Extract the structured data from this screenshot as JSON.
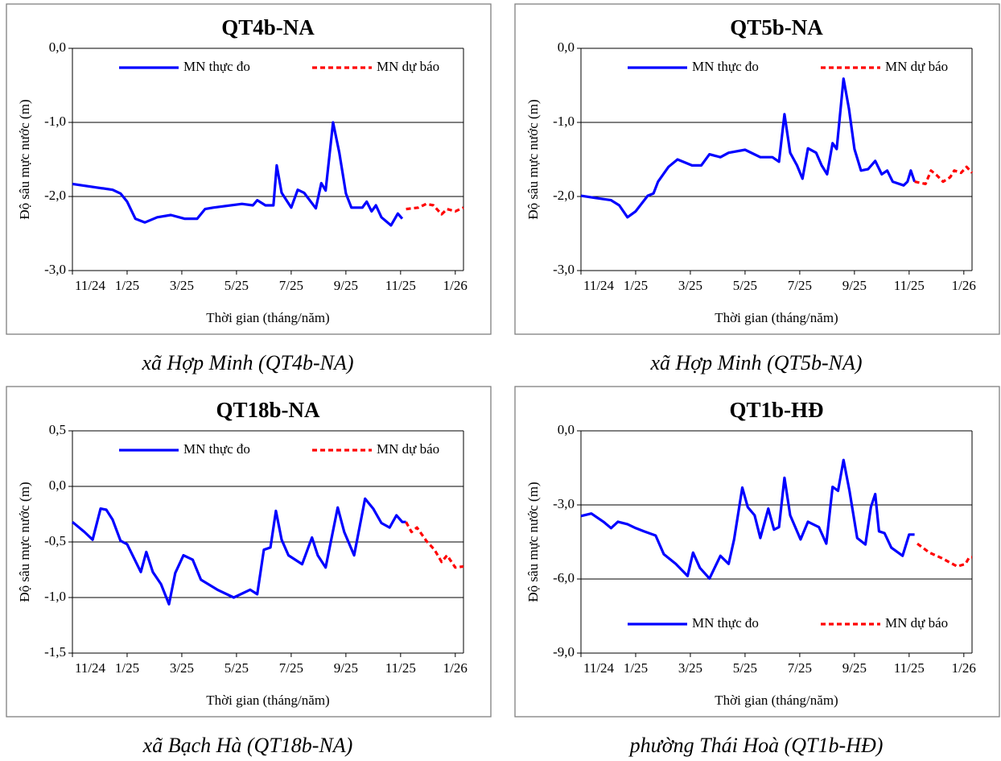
{
  "chart_data": [
    {
      "type": "line",
      "title": "QT4b-NA",
      "caption": "xã Hợp Minh (QT4b-NA)",
      "x_label": "Thời gian (tháng/năm)",
      "y_label": "Độ sâu mực nước (m)",
      "xlim": [
        0,
        14.3
      ],
      "xticks": [
        {
          "value": 0,
          "label": "11/24"
        },
        {
          "value": 2,
          "label": "1/25"
        },
        {
          "value": 4,
          "label": "3/25"
        },
        {
          "value": 6,
          "label": "5/25"
        },
        {
          "value": 8,
          "label": "7/25"
        },
        {
          "value": 10,
          "label": "9/25"
        },
        {
          "value": 12,
          "label": "11/25"
        },
        {
          "value": 14,
          "label": "1/26"
        }
      ],
      "ylim": [
        -3,
        0
      ],
      "yticks": [
        {
          "value": -3,
          "label": "-3,0"
        },
        {
          "value": -2,
          "label": "-2,0"
        },
        {
          "value": -1,
          "label": "-1,0"
        },
        {
          "value": 0,
          "label": "0,0"
        }
      ],
      "grid": true,
      "legend": "top",
      "series": [
        {
          "name": "MN thực đo",
          "color": "#0000ff",
          "dashed": false,
          "x": [
            0,
            1.47,
            1.76,
            2,
            2.3,
            2.65,
            3.1,
            3.6,
            4.1,
            4.56,
            4.85,
            5.15,
            6.2,
            6.6,
            6.76,
            7.06,
            7.35,
            7.47,
            7.65,
            8,
            8.24,
            8.47,
            8.9,
            9.1,
            9.26,
            9.53,
            9.76,
            10,
            10.2,
            10.6,
            10.76,
            10.94,
            11.1,
            11.3,
            11.65,
            11.9,
            12.06
          ],
          "values": [
            -1.83,
            -1.91,
            -1.96,
            -2.07,
            -2.3,
            -2.35,
            -2.28,
            -2.25,
            -2.3,
            -2.3,
            -2.17,
            -2.15,
            -2.1,
            -2.12,
            -2.05,
            -2.12,
            -2.12,
            -1.58,
            -1.95,
            -2.15,
            -1.91,
            -1.95,
            -2.16,
            -1.82,
            -1.92,
            -1.0,
            -1.41,
            -1.96,
            -2.15,
            -2.15,
            -2.07,
            -2.2,
            -2.12,
            -2.28,
            -2.39,
            -2.23,
            -2.3
          ]
        },
        {
          "name": "MN dự báo",
          "color": "#ff0000",
          "dashed": true,
          "x": [
            12.2,
            12.65,
            12.94,
            13.2,
            13.5,
            13.7,
            14,
            14.3
          ],
          "values": [
            -2.17,
            -2.15,
            -2.1,
            -2.12,
            -2.24,
            -2.17,
            -2.2,
            -2.15
          ]
        }
      ]
    },
    {
      "type": "line",
      "title": "QT5b-NA",
      "caption": "xã Hợp Minh (QT5b-NA)",
      "x_label": "Thời gian (tháng/năm)",
      "y_label": "Độ sâu mực nước (m)",
      "xlim": [
        0,
        14.3
      ],
      "xticks": [
        {
          "value": 0,
          "label": "11/24"
        },
        {
          "value": 2,
          "label": "1/25"
        },
        {
          "value": 4,
          "label": "3/25"
        },
        {
          "value": 6,
          "label": "5/25"
        },
        {
          "value": 8,
          "label": "7/25"
        },
        {
          "value": 10,
          "label": "9/25"
        },
        {
          "value": 12,
          "label": "11/25"
        },
        {
          "value": 14,
          "label": "1/26"
        }
      ],
      "ylim": [
        -3,
        0
      ],
      "yticks": [
        {
          "value": -3,
          "label": "-3,0"
        },
        {
          "value": -2,
          "label": "-2,0"
        },
        {
          "value": -1,
          "label": "-1,0"
        },
        {
          "value": 0,
          "label": "0,0"
        }
      ],
      "grid": true,
      "legend": "top",
      "series": [
        {
          "name": "MN thực đo",
          "color": "#0000ff",
          "dashed": false,
          "x": [
            0,
            0.53,
            1.1,
            1.4,
            1.7,
            2,
            2.44,
            2.65,
            2.82,
            3.2,
            3.53,
            4.06,
            4.4,
            4.7,
            5.1,
            5.4,
            6,
            6.56,
            7,
            7.24,
            7.44,
            7.65,
            7.9,
            8.1,
            8.3,
            8.6,
            8.8,
            9,
            9.2,
            9.35,
            9.6,
            9.8,
            10,
            10.24,
            10.5,
            10.76,
            11,
            11.2,
            11.4,
            11.8,
            11.94,
            12.06,
            12.2
          ],
          "values": [
            -1.99,
            -2.02,
            -2.05,
            -2.12,
            -2.28,
            -2.2,
            -1.99,
            -1.96,
            -1.8,
            -1.6,
            -1.5,
            -1.58,
            -1.58,
            -1.43,
            -1.47,
            -1.41,
            -1.37,
            -1.47,
            -1.47,
            -1.53,
            -0.89,
            -1.41,
            -1.58,
            -1.76,
            -1.35,
            -1.41,
            -1.58,
            -1.7,
            -1.28,
            -1.36,
            -0.41,
            -0.82,
            -1.36,
            -1.65,
            -1.63,
            -1.52,
            -1.7,
            -1.65,
            -1.8,
            -1.85,
            -1.8,
            -1.65,
            -1.8
          ]
        },
        {
          "name": "MN dự báo",
          "color": "#ff0000",
          "dashed": true,
          "x": [
            12.2,
            12.6,
            12.8,
            13.03,
            13.24,
            13.5,
            13.65,
            13.9,
            14.1,
            14.3
          ],
          "values": [
            -1.8,
            -1.83,
            -1.65,
            -1.72,
            -1.8,
            -1.74,
            -1.65,
            -1.68,
            -1.6,
            -1.68
          ]
        }
      ]
    },
    {
      "type": "line",
      "title": "QT18b-NA",
      "caption": "xã Bạch Hà (QT18b-NA)",
      "x_label": "Thời gian (tháng/năm)",
      "y_label": "Độ sâu mực nước (m)",
      "xlim": [
        0,
        14.3
      ],
      "xticks": [
        {
          "value": 0,
          "label": "11/24"
        },
        {
          "value": 2,
          "label": "1/25"
        },
        {
          "value": 4,
          "label": "3/25"
        },
        {
          "value": 6,
          "label": "5/25"
        },
        {
          "value": 8,
          "label": "7/25"
        },
        {
          "value": 10,
          "label": "9/25"
        },
        {
          "value": 12,
          "label": "11/25"
        },
        {
          "value": 14,
          "label": "1/26"
        }
      ],
      "ylim": [
        -1.5,
        0.5
      ],
      "yticks": [
        {
          "value": -1.5,
          "label": "-1,5"
        },
        {
          "value": -1,
          "label": "-1,0"
        },
        {
          "value": -0.5,
          "label": "-0,5"
        },
        {
          "value": 0,
          "label": "0,0"
        },
        {
          "value": 0.5,
          "label": "0,5"
        }
      ],
      "grid": true,
      "legend": "top",
      "series": [
        {
          "name": "MN thực đo",
          "color": "#0000ff",
          "dashed": false,
          "x": [
            0,
            0.44,
            0.74,
            1.03,
            1.24,
            1.47,
            1.76,
            2,
            2.2,
            2.5,
            2.7,
            2.94,
            3.24,
            3.53,
            3.76,
            4.06,
            4.4,
            4.7,
            5.3,
            5.9,
            6.5,
            6.76,
            7,
            7.24,
            7.44,
            7.65,
            7.9,
            8.4,
            8.76,
            8.97,
            9.26,
            9.7,
            9.94,
            10.3,
            10.7,
            11,
            11.3,
            11.6,
            11.85,
            12.06,
            12.2
          ],
          "values": [
            -0.32,
            -0.41,
            -0.48,
            -0.2,
            -0.21,
            -0.3,
            -0.49,
            -0.52,
            -0.62,
            -0.77,
            -0.59,
            -0.77,
            -0.88,
            -1.06,
            -0.78,
            -0.62,
            -0.66,
            -0.84,
            -0.93,
            -1.0,
            -0.93,
            -0.97,
            -0.57,
            -0.55,
            -0.22,
            -0.48,
            -0.62,
            -0.7,
            -0.46,
            -0.62,
            -0.73,
            -0.19,
            -0.41,
            -0.62,
            -0.11,
            -0.2,
            -0.33,
            -0.37,
            -0.26,
            -0.32,
            -0.32
          ]
        },
        {
          "name": "MN dự báo",
          "color": "#ff0000",
          "dashed": true,
          "x": [
            12.2,
            12.4,
            12.6,
            12.94,
            13.24,
            13.5,
            13.7,
            14,
            14.3
          ],
          "values": [
            -0.32,
            -0.41,
            -0.37,
            -0.49,
            -0.57,
            -0.68,
            -0.62,
            -0.73,
            -0.72
          ]
        }
      ]
    },
    {
      "type": "line",
      "title": "QT1b-HĐ",
      "caption": "phường Thái Hoà (QT1b-HĐ)",
      "x_label": "Thời gian (tháng/năm)",
      "y_label": "Độ sâu mực nước (m)",
      "xlim": [
        0,
        14.3
      ],
      "xticks": [
        {
          "value": 0,
          "label": "11/24"
        },
        {
          "value": 2,
          "label": "1/25"
        },
        {
          "value": 4,
          "label": "3/25"
        },
        {
          "value": 6,
          "label": "5/25"
        },
        {
          "value": 8,
          "label": "7/25"
        },
        {
          "value": 10,
          "label": "9/25"
        },
        {
          "value": 12,
          "label": "11/25"
        },
        {
          "value": 14,
          "label": "1/26"
        }
      ],
      "ylim": [
        -9,
        0
      ],
      "yticks": [
        {
          "value": -9,
          "label": "-9,0"
        },
        {
          "value": -6,
          "label": "-6,0"
        },
        {
          "value": -3,
          "label": "-3,0"
        },
        {
          "value": 0,
          "label": "0,0"
        }
      ],
      "grid": true,
      "legend": "bottom",
      "series": [
        {
          "name": "MN thực đo",
          "color": "#0000ff",
          "dashed": false,
          "x": [
            0,
            0.38,
            0.82,
            1.1,
            1.35,
            1.7,
            2,
            2.3,
            2.73,
            3.03,
            3.47,
            3.9,
            4.1,
            4.35,
            4.7,
            5.1,
            5.4,
            5.6,
            5.9,
            6.1,
            6.35,
            6.56,
            6.85,
            7.06,
            7.24,
            7.44,
            7.65,
            8.03,
            8.3,
            8.7,
            8.97,
            9.2,
            9.4,
            9.6,
            9.82,
            10.1,
            10.4,
            10.6,
            10.76,
            10.9,
            11.1,
            11.35,
            11.76,
            12,
            12.2
          ],
          "values": [
            -3.45,
            -3.35,
            -3.68,
            -3.94,
            -3.68,
            -3.78,
            -3.94,
            -4.07,
            -4.24,
            -5,
            -5.39,
            -5.88,
            -4.93,
            -5.55,
            -5.98,
            -5.06,
            -5.39,
            -4.4,
            -2.3,
            -3.09,
            -3.42,
            -4.34,
            -3.15,
            -4.0,
            -3.9,
            -1.9,
            -3.42,
            -4.4,
            -3.68,
            -3.9,
            -4.57,
            -2.27,
            -2.43,
            -1.18,
            -2.43,
            -4.34,
            -4.6,
            -3.09,
            -2.56,
            -4.07,
            -4.14,
            -4.73,
            -5.06,
            -4.2,
            -4.2
          ]
        },
        {
          "name": "MN dự báo",
          "color": "#ff0000",
          "dashed": true,
          "x": [
            12.3,
            12.74,
            13.2,
            13.76,
            14.06,
            14.2,
            14.3
          ],
          "values": [
            -4.57,
            -4.93,
            -5.16,
            -5.49,
            -5.39,
            -5.12,
            -5.12
          ]
        }
      ]
    }
  ]
}
